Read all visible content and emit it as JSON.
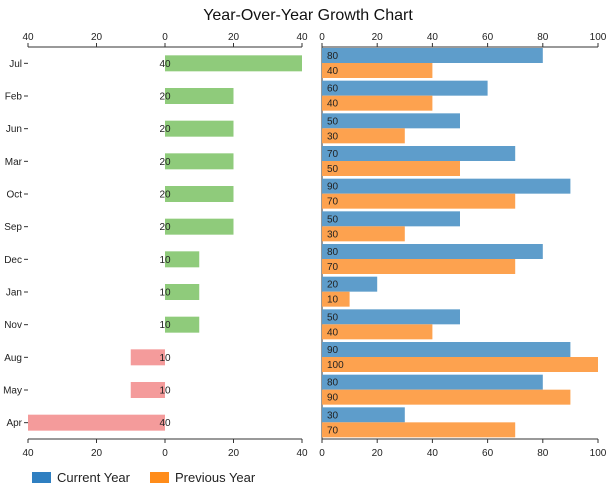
{
  "chart_data": {
    "type": "bar",
    "title": "Year-Over-Year Growth Chart",
    "categories": [
      "Jul",
      "Feb",
      "Jun",
      "Mar",
      "Oct",
      "Sep",
      "Dec",
      "Jan",
      "Nov",
      "Aug",
      "May",
      "Apr"
    ],
    "growth": {
      "values": [
        40,
        20,
        20,
        20,
        20,
        20,
        10,
        10,
        10,
        -10,
        -10,
        -40
      ],
      "labels": [
        "40",
        "20",
        "20",
        "20",
        "20",
        "20",
        "10",
        "10",
        "10",
        "10",
        "10",
        "40"
      ],
      "axis_ticks": [
        "40",
        "20",
        "0",
        "20",
        "40"
      ],
      "xlim": [
        -40,
        40
      ],
      "positive_color": "#8fcb7b",
      "negative_color": "#f49b9b"
    },
    "comparison": {
      "series": [
        {
          "name": "Current Year",
          "values": [
            80,
            60,
            50,
            70,
            90,
            50,
            80,
            20,
            50,
            90,
            80,
            30
          ],
          "color": "#5e9dcb"
        },
        {
          "name": "Previous Year",
          "values": [
            40,
            40,
            30,
            50,
            70,
            30,
            70,
            10,
            40,
            100,
            90,
            70
          ],
          "color": "#fda24f"
        }
      ],
      "axis_ticks": [
        "0",
        "20",
        "40",
        "60",
        "80",
        "100"
      ],
      "xlim": [
        0,
        100
      ]
    },
    "legend": {
      "position": "bottom-left",
      "items": [
        {
          "label": "Current Year",
          "color": "#2f7fc1"
        },
        {
          "label": "Previous Year",
          "color": "#ff8c1a"
        }
      ]
    }
  }
}
